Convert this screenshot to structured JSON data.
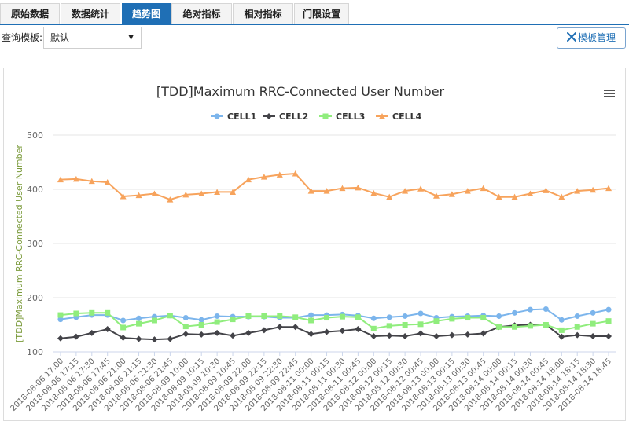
{
  "tabs": [
    {
      "label": "原始数据",
      "active": false
    },
    {
      "label": "数据统计",
      "active": false
    },
    {
      "label": "趋势图",
      "active": true
    },
    {
      "label": "绝对指标",
      "active": false
    },
    {
      "label": "相对指标",
      "active": false
    },
    {
      "label": "门限设置",
      "active": false
    }
  ],
  "query": {
    "label": "查询模板:",
    "selected": "默认"
  },
  "template_manage": {
    "label": "模板管理",
    "icon": "wrench-scissors-icon"
  },
  "chart_data": {
    "type": "line",
    "title": "[TDD]Maximum RRC-Connected User Number",
    "ylabel": "[TDD]Maximum RRC-Connected User Number",
    "xlabel": "",
    "ylim": [
      100,
      500
    ],
    "yticks": [
      100,
      200,
      300,
      400,
      500
    ],
    "grid": true,
    "legend_position": "top",
    "x": [
      "2018-08-06 17:00",
      "2018-08-06 17:15",
      "2018-08-06 17:30",
      "2018-08-06 17:45",
      "2018-08-06 21:00",
      "2018-08-06 21:15",
      "2018-08-06 21:30",
      "2018-08-06 21:45",
      "2018-08-09 10:00",
      "2018-08-09 10:15",
      "2018-08-09 10:30",
      "2018-08-09 10:45",
      "2018-08-09 22:00",
      "2018-08-09 22:15",
      "2018-08-09 22:30",
      "2018-08-09 22:45",
      "2018-08-11 00:00",
      "2018-08-11 00:15",
      "2018-08-11 00:30",
      "2018-08-11 00:45",
      "2018-08-12 00:00",
      "2018-08-12 00:15",
      "2018-08-12 00:30",
      "2018-08-12 00:45",
      "2018-08-13 00:00",
      "2018-08-13 00:15",
      "2018-08-13 00:30",
      "2018-08-13 00:45",
      "2018-08-14 00:00",
      "2018-08-14 00:15",
      "2018-08-14 00:30",
      "2018-08-14 00:45",
      "2018-08-14 18:00",
      "2018-08-14 18:15",
      "2018-08-14 18:30",
      "2018-08-14 18:45"
    ],
    "series": [
      {
        "name": "CELL1",
        "color": "#7cb5ec",
        "marker": "circle",
        "values": [
          160,
          164,
          168,
          168,
          158,
          162,
          165,
          167,
          163,
          159,
          166,
          165,
          165,
          165,
          163,
          163,
          168,
          168,
          169,
          167,
          162,
          164,
          166,
          171,
          163,
          165,
          166,
          167,
          166,
          172,
          178,
          179,
          159,
          166,
          172,
          178
        ]
      },
      {
        "name": "CELL2",
        "color": "#434348",
        "marker": "diamond",
        "values": [
          125,
          128,
          135,
          142,
          126,
          124,
          123,
          124,
          133,
          132,
          135,
          130,
          135,
          140,
          146,
          146,
          133,
          137,
          139,
          142,
          129,
          130,
          129,
          134,
          129,
          131,
          132,
          134,
          146,
          149,
          150,
          150,
          128,
          131,
          129,
          129
        ]
      },
      {
        "name": "CELL3",
        "color": "#90ed7d",
        "marker": "square",
        "values": [
          168,
          171,
          172,
          172,
          145,
          152,
          158,
          167,
          147,
          150,
          155,
          160,
          166,
          166,
          166,
          164,
          158,
          163,
          165,
          164,
          143,
          148,
          150,
          151,
          157,
          161,
          163,
          163,
          146,
          146,
          148,
          150,
          140,
          146,
          152,
          157
        ]
      },
      {
        "name": "CELL4",
        "color": "#f7a35c",
        "marker": "triangle",
        "values": [
          418,
          419,
          415,
          413,
          387,
          389,
          392,
          381,
          390,
          392,
          395,
          395,
          418,
          423,
          427,
          429,
          397,
          397,
          402,
          403,
          393,
          386,
          397,
          401,
          388,
          391,
          397,
          402,
          386,
          386,
          392,
          398,
          386,
          397,
          399,
          402
        ]
      }
    ]
  }
}
